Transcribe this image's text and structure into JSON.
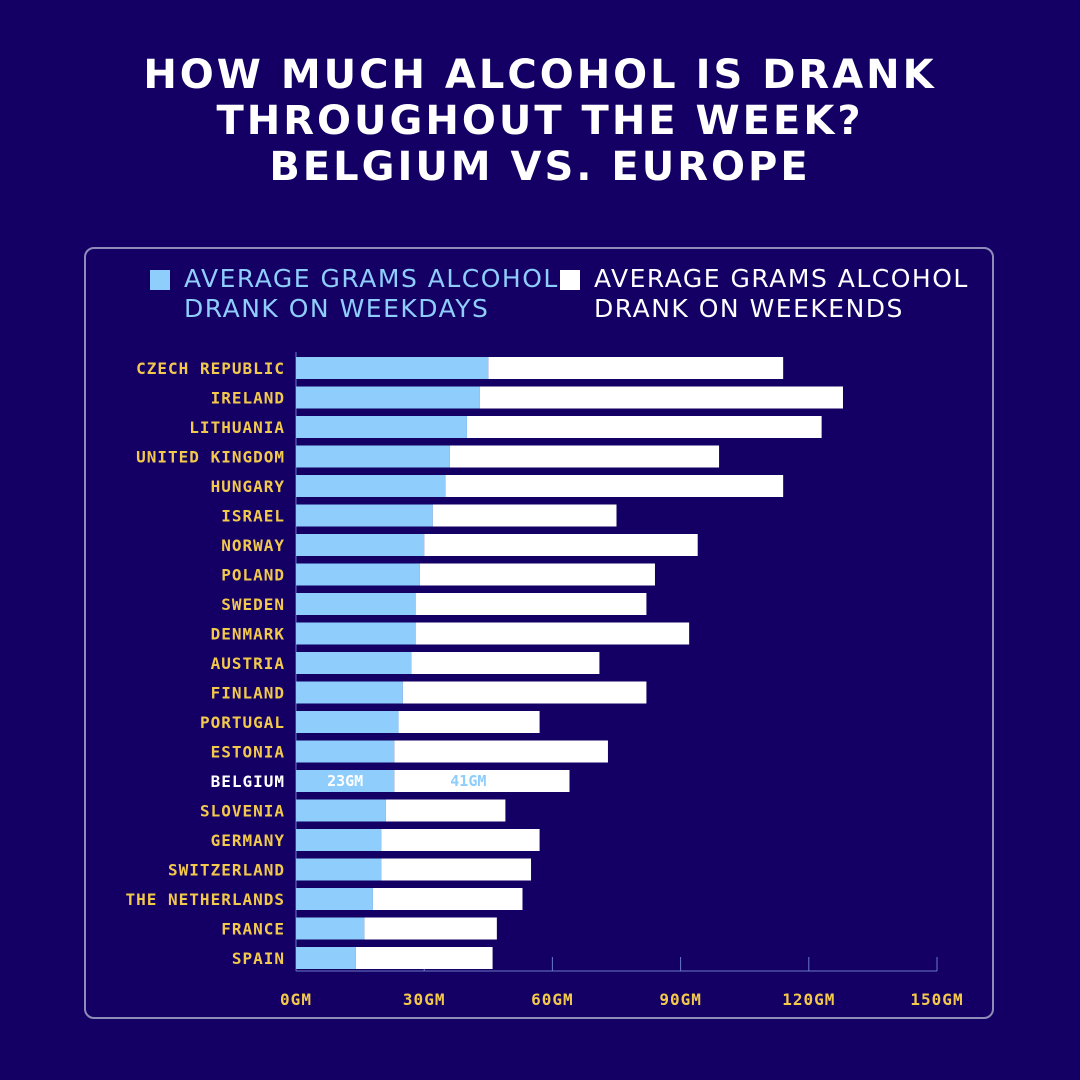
{
  "title": {
    "line1": "How much alcohol is drank",
    "line2": "throughout the week?",
    "line3": "Belgium vs. Europe"
  },
  "legend": {
    "weekday": {
      "line1": "Average grams alcohol",
      "line2": "drank on weekdays"
    },
    "weekend": {
      "line1": "Average grams alcohol",
      "line2": "drank on weekends"
    }
  },
  "colors": {
    "background": "#140064",
    "weekday": "#8ecdfc",
    "weekend": "#ffffff",
    "labels": "#f2c94c",
    "highlight_label": "#ffffff"
  },
  "chart_data": {
    "type": "bar",
    "orientation": "horizontal",
    "stacked": true,
    "categories": [
      "Czech Republic",
      "Ireland",
      "Lithuania",
      "United Kingdom",
      "Hungary",
      "Israel",
      "Norway",
      "Poland",
      "Sweden",
      "Denmark",
      "Austria",
      "Finland",
      "Portugal",
      "Estonia",
      "Belgium",
      "Slovenia",
      "Germany",
      "Switzerland",
      "The Netherlands",
      "France",
      "Spain"
    ],
    "series": [
      {
        "name": "Average grams alcohol drank on weekdays",
        "values": [
          45,
          43,
          40,
          36,
          35,
          32,
          30,
          29,
          28,
          28,
          27,
          25,
          24,
          23,
          23,
          21,
          20,
          20,
          18,
          16,
          14
        ]
      },
      {
        "name": "Average grams alcohol drank on weekends",
        "values": [
          69,
          85,
          83,
          63,
          79,
          43,
          64,
          55,
          54,
          64,
          44,
          57,
          33,
          50,
          41,
          28,
          37,
          35,
          35,
          31,
          32
        ]
      }
    ],
    "xlim": [
      0,
      150
    ],
    "xticks": [
      "0GM",
      "30GM",
      "60GM",
      "90GM",
      "120GM",
      "150GM"
    ],
    "xtick_values": [
      0,
      30,
      60,
      90,
      120,
      150
    ],
    "highlight": "Belgium",
    "data_labels": {
      "Belgium": [
        "23GM",
        "41GM"
      ]
    },
    "legend_position": "top",
    "grid": false
  }
}
